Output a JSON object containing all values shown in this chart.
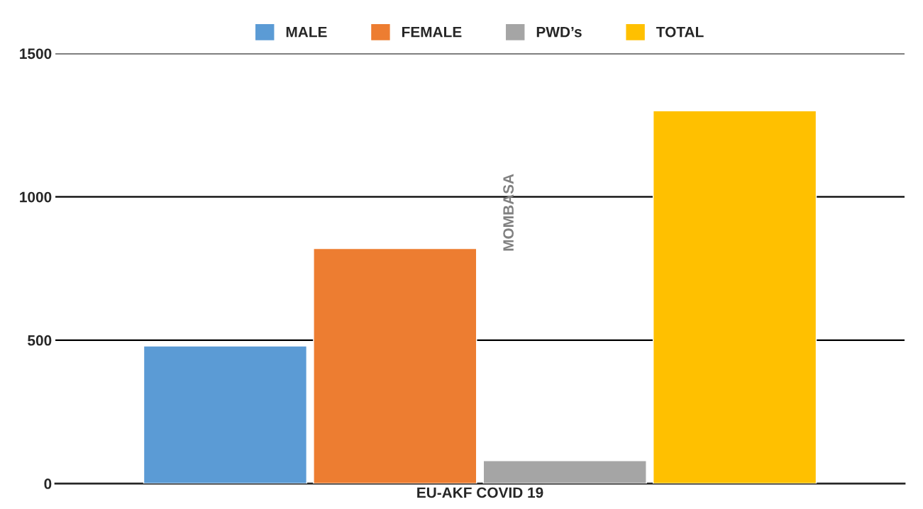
{
  "chart_data": {
    "type": "bar",
    "categories": [
      "EU-AKF COVID 19"
    ],
    "series": [
      {
        "name": "MALE",
        "color": "#5b9bd5",
        "values": [
          480
        ]
      },
      {
        "name": "FEMALE",
        "color": "#ed7d31",
        "values": [
          820
        ]
      },
      {
        "name": "PWD’s",
        "color": "#a5a5a5",
        "values": [
          80
        ]
      },
      {
        "name": "TOTAL",
        "color": "#ffc000",
        "values": [
          1300
        ]
      }
    ],
    "annotations": [
      "MOMBASA"
    ],
    "ylim": [
      0,
      1500
    ],
    "yticks": [
      0,
      500,
      1000,
      1500
    ],
    "grid": "y",
    "legend": "top"
  }
}
